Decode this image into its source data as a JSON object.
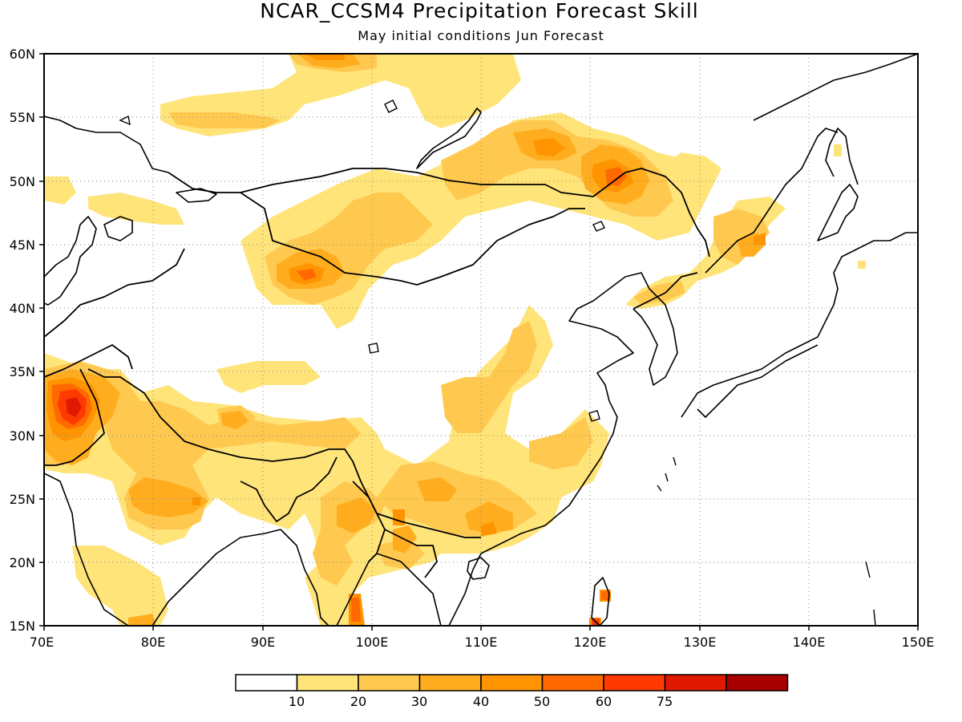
{
  "title": "NCAR_CCSM4 Precipitation Forecast Skill",
  "subtitle": "May initial conditions  Jun Forecast",
  "axes": {
    "lon_ticks": [
      "70E",
      "80E",
      "90E",
      "100E",
      "110E",
      "120E",
      "130E",
      "140E",
      "150E"
    ],
    "lat_ticks": [
      "15N",
      "20N",
      "25N",
      "30N",
      "35N",
      "40N",
      "45N",
      "50N",
      "55N",
      "60N"
    ],
    "lon_range": [
      70,
      150
    ],
    "lat_range": [
      15,
      60
    ],
    "grid": true
  },
  "colorbar": {
    "labels": [
      "10",
      "20",
      "30",
      "40",
      "50",
      "60",
      "75"
    ],
    "colors": [
      "#ffffff",
      "#ffe47a",
      "#ffc84f",
      "#ffad1f",
      "#ff9400",
      "#ff6900",
      "#ff3a00",
      "#e01a00",
      "#a70000"
    ]
  },
  "skill_regions": [
    {
      "lon": 74,
      "lat": 31,
      "rx": 4,
      "ry": 3.5,
      "level": 6
    },
    {
      "lon": 73.5,
      "lat": 31.5,
      "rx": 1.5,
      "ry": 1.5,
      "level": 7
    },
    {
      "lon": 95,
      "lat": 42.5,
      "rx": 3,
      "ry": 1.8,
      "level": 4
    },
    {
      "lon": 121.5,
      "lat": 50,
      "rx": 2.5,
      "ry": 1.5,
      "level": 4
    },
    {
      "lon": 117,
      "lat": 52,
      "rx": 2,
      "ry": 1,
      "level": 3
    },
    {
      "lon": 96.5,
      "lat": 59.5,
      "rx": 2,
      "ry": 0.8,
      "level": 4
    },
    {
      "lon": 84,
      "lat": 25,
      "rx": 2,
      "ry": 1,
      "level": 3
    },
    {
      "lon": 105.5,
      "lat": 25,
      "rx": 2,
      "ry": 1.3,
      "level": 3
    },
    {
      "lon": 112,
      "lat": 23,
      "rx": 2,
      "ry": 1,
      "level": 4
    },
    {
      "lon": 102,
      "lat": 23.5,
      "rx": 1,
      "ry": 1,
      "level": 4
    },
    {
      "lon": 98.5,
      "lat": 16,
      "rx": 0.5,
      "ry": 1,
      "level": 5
    },
    {
      "lon": 120.5,
      "lat": 15.5,
      "rx": 0.5,
      "ry": 0.6,
      "level": 6
    },
    {
      "lon": 120.8,
      "lat": 17.5,
      "rx": 0.5,
      "ry": 0.6,
      "level": 5
    },
    {
      "lon": 135,
      "lat": 45,
      "rx": 1.2,
      "ry": 0.9,
      "level": 4
    }
  ]
}
